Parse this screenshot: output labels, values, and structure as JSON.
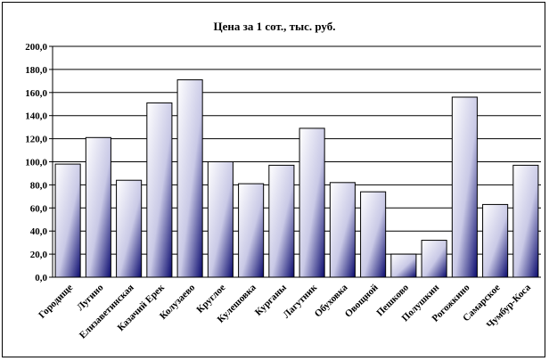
{
  "chart_data": {
    "type": "bar",
    "title": "Цена за 1 сот., тыс. руб.",
    "xlabel": "",
    "ylabel": "",
    "ylim": [
      0,
      200
    ],
    "yticks": [
      "0,0",
      "20,0",
      "40,0",
      "60,0",
      "80,0",
      "100,0",
      "120,0",
      "140,0",
      "160,0",
      "180,0",
      "200,0"
    ],
    "grid": true,
    "legend": "none",
    "categories": [
      "Городище",
      "Лугино",
      "Елизаветинская",
      "Казачий Ерек",
      "Колузаево",
      "Круглое",
      "Кулешовка",
      "Курганы",
      "Лагутник",
      "Обуховка",
      "Овощной",
      "Пешково",
      "Полушкин",
      "Рогожкино",
      "Самарское",
      "Чумбур-Коса"
    ],
    "values": [
      98,
      121,
      84,
      151,
      171,
      100,
      81,
      97,
      129,
      82,
      74,
      20,
      32,
      156,
      63,
      97
    ],
    "colors": {
      "bar_dark": "#0a0a6e",
      "bar_light": "#ffffff",
      "grid": "#000000"
    }
  }
}
